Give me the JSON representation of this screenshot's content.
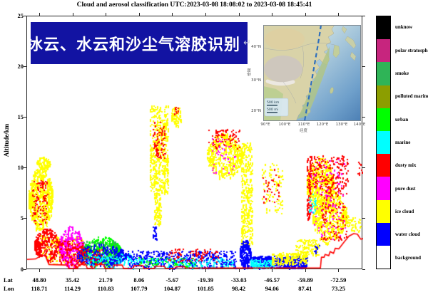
{
  "title": "Cloud and aerosol classification UTC:2023-03-08 18:08:02 to 2023-03-08 18:45:41",
  "banner": {
    "text": "冰云、水云和沙尘气溶胶识别",
    "return_mark": "↵",
    "bg_color": "#1213A2",
    "text_color": "#ffffff"
  },
  "axes": {
    "y_label": "Altitude/km",
    "lat_header": "Lat",
    "lon_header": "Lon"
  },
  "chart_data": {
    "type": "heatmap",
    "title": "Cloud and aerosol classification UTC:2023-03-08 18:08:02 to 2023-03-08 18:45:41",
    "ylabel": "Altitude/km",
    "ylim": [
      0,
      25
    ],
    "y_ticks": [
      "0",
      "5",
      "10",
      "15",
      "20",
      "25"
    ],
    "grid": false,
    "legend_position": "right-colorbar",
    "x_axis": {
      "lat": [
        "48.80",
        "35.42",
        "21.79",
        "8.06",
        "-5.67",
        "-19.39",
        "-33.03",
        "-46.57",
        "-59.89",
        "-72.59"
      ],
      "lon": [
        "118.71",
        "114.29",
        "110.83",
        "107.79",
        "104.87",
        "101.85",
        "98.42",
        "94.06",
        "87.41",
        "73.25"
      ]
    },
    "classes": [
      {
        "key": "unknow",
        "label": "unknow",
        "color": "#000000"
      },
      {
        "key": "polar_strat",
        "label": "polar stratospheric aeroso",
        "color": "#C7257E"
      },
      {
        "key": "smoke",
        "label": "smoke",
        "color": "#2FB457"
      },
      {
        "key": "polluted_marine",
        "label": "polluted marine",
        "color": "#8C9E00"
      },
      {
        "key": "urban",
        "label": "urban",
        "color": "#00FF00"
      },
      {
        "key": "marine",
        "label": "marine",
        "color": "#00FFFF"
      },
      {
        "key": "dusty_mix",
        "label": "dusty mix",
        "color": "#FF0000"
      },
      {
        "key": "pure_dust",
        "label": "pure dust",
        "color": "#FF00FF"
      },
      {
        "key": "ice_cloud",
        "label": "ice cloud",
        "color": "#FFFF00"
      },
      {
        "key": "water_cloud",
        "label": "water cloud",
        "color": "#0000FF"
      },
      {
        "key": "background",
        "label": "background",
        "color": "#FFFFFF"
      }
    ],
    "surface_color": "#FF0000",
    "surface_line": [
      [
        0,
        1.0
      ],
      [
        0.025,
        1.05
      ],
      [
        0.045,
        1.45
      ],
      [
        0.055,
        1.3
      ],
      [
        0.06,
        0.9
      ],
      [
        0.065,
        0.5
      ],
      [
        0.12,
        0.45
      ],
      [
        0.124,
        0.12
      ],
      [
        0.15,
        0.12
      ],
      [
        0.154,
        0.5
      ],
      [
        0.175,
        0.5
      ],
      [
        0.179,
        0.12
      ],
      [
        0.2,
        0.12
      ],
      [
        0.204,
        0.5
      ],
      [
        0.228,
        0.5
      ],
      [
        0.232,
        0.12
      ],
      [
        0.255,
        0.12
      ],
      [
        0.259,
        0.45
      ],
      [
        0.283,
        0.45
      ],
      [
        0.287,
        0.12
      ],
      [
        0.315,
        0.12
      ],
      [
        0.319,
        0.4
      ],
      [
        0.344,
        0.4
      ],
      [
        0.348,
        0.12
      ],
      [
        0.378,
        0.12
      ],
      [
        0.382,
        0.33
      ],
      [
        0.408,
        0.33
      ],
      [
        0.412,
        0.12
      ],
      [
        0.44,
        0.12
      ],
      [
        0.444,
        0.28
      ],
      [
        0.468,
        0.28
      ],
      [
        0.472,
        0.14
      ],
      [
        0.55,
        0.16
      ],
      [
        0.65,
        0.16
      ],
      [
        0.75,
        0.16
      ],
      [
        0.873,
        0.16
      ],
      [
        0.876,
        1.22
      ],
      [
        0.884,
        1.22
      ],
      [
        0.887,
        1.5
      ],
      [
        0.898,
        1.38
      ],
      [
        0.902,
        1.78
      ],
      [
        0.912,
        1.6
      ],
      [
        0.917,
        2.1
      ],
      [
        0.928,
        2.05
      ],
      [
        0.944,
        2.75
      ],
      [
        0.958,
        3.3
      ],
      [
        0.972,
        3.55
      ],
      [
        0.983,
        3.5
      ],
      [
        0.993,
        3.0
      ],
      [
        1,
        3.05
      ]
    ],
    "clusters": [
      {
        "c": "ice_cloud",
        "s": "blob",
        "x": [
          0.005,
          0.078
        ],
        "a": [
          3.8,
          10.3
        ],
        "n": 650
      },
      {
        "c": "dusty_mix",
        "s": "sparse",
        "x": [
          0.015,
          0.065
        ],
        "a": [
          4.5,
          8.8
        ],
        "n": 100
      },
      {
        "c": "ice_cloud",
        "s": "blob",
        "x": [
          0.028,
          0.072
        ],
        "a": [
          9.9,
          11.2
        ],
        "n": 70
      },
      {
        "c": "dusty_mix",
        "s": "blob",
        "x": [
          0.022,
          0.1
        ],
        "a": [
          0.8,
          4.1
        ],
        "n": 360
      },
      {
        "c": "ice_cloud",
        "s": "sparse",
        "x": [
          0.04,
          0.17
        ],
        "a": [
          0.5,
          3.4
        ],
        "n": 160
      },
      {
        "c": "pure_dust",
        "s": "blob",
        "x": [
          0.095,
          0.168
        ],
        "a": [
          0.3,
          4.3
        ],
        "n": 380
      },
      {
        "c": "dusty_mix",
        "s": "sparse",
        "x": [
          0.095,
          0.168
        ],
        "a": [
          0.3,
          3.0
        ],
        "n": 140
      },
      {
        "c": "urban",
        "s": "blob",
        "x": [
          0.163,
          0.285
        ],
        "a": [
          0.2,
          3.3
        ],
        "n": 520
      },
      {
        "c": "smoke",
        "s": "sparse",
        "x": [
          0.168,
          0.27
        ],
        "a": [
          0.4,
          2.9
        ],
        "n": 140
      },
      {
        "c": "water_cloud",
        "s": "blob",
        "x": [
          0.148,
          0.3
        ],
        "a": [
          0.2,
          2.6
        ],
        "n": 300
      },
      {
        "c": "marine",
        "s": "sparse",
        "x": [
          0.18,
          0.33
        ],
        "a": [
          0.08,
          1.6
        ],
        "n": 130
      },
      {
        "c": "dusty_mix",
        "s": "sparse",
        "x": [
          0.13,
          0.23
        ],
        "a": [
          0.4,
          2.2
        ],
        "n": 70
      },
      {
        "c": "water_cloud",
        "s": "band",
        "x": [
          0.3,
          0.625
        ],
        "a": [
          0.05,
          1.9
        ],
        "n": 560
      },
      {
        "c": "marine",
        "s": "sparse",
        "x": [
          0.3,
          0.62
        ],
        "a": [
          0.05,
          1.2
        ],
        "n": 190
      },
      {
        "c": "dusty_mix",
        "s": "sparse",
        "x": [
          0.42,
          0.57
        ],
        "a": [
          0.8,
          2.1
        ],
        "n": 80
      },
      {
        "c": "urban",
        "s": "sparse",
        "x": [
          0.33,
          0.52
        ],
        "a": [
          0.08,
          1.2
        ],
        "n": 70
      },
      {
        "c": "ice_cloud",
        "s": "column",
        "x": [
          0.366,
          0.425
        ],
        "a": [
          7.5,
          16.2
        ],
        "n": 460
      },
      {
        "c": "dusty_mix",
        "s": "sparse",
        "x": [
          0.374,
          0.416
        ],
        "a": [
          11.0,
          14.6
        ],
        "n": 70
      },
      {
        "c": "ice_cloud",
        "s": "column",
        "x": [
          0.378,
          0.402
        ],
        "a": [
          4.5,
          7.6
        ],
        "n": 90
      },
      {
        "c": "ice_cloud",
        "s": "blob",
        "x": [
          0.428,
          0.458
        ],
        "a": [
          14.2,
          16.4
        ],
        "n": 80
      },
      {
        "c": "dusty_mix",
        "s": "sparse",
        "x": [
          0.437,
          0.452
        ],
        "a": [
          15.3,
          16.1
        ],
        "n": 10
      },
      {
        "c": "water_cloud",
        "s": "sparse",
        "x": [
          0.373,
          0.387
        ],
        "a": [
          3.0,
          4.3
        ],
        "n": 28
      },
      {
        "c": "ice_cloud",
        "s": "blob",
        "x": [
          0.535,
          0.642
        ],
        "a": [
          9.0,
          13.6
        ],
        "n": 420
      },
      {
        "c": "dusty_mix",
        "s": "sparse",
        "x": [
          0.54,
          0.635
        ],
        "a": [
          12.0,
          13.9
        ],
        "n": 80
      },
      {
        "c": "pure_dust",
        "s": "sparse",
        "x": [
          0.55,
          0.625
        ],
        "a": [
          9.5,
          13.0
        ],
        "n": 36
      },
      {
        "c": "ice_cloud",
        "s": "column",
        "x": [
          0.638,
          0.676
        ],
        "a": [
          2.5,
          12.6
        ],
        "n": 330
      },
      {
        "c": "water_cloud",
        "s": "blob",
        "x": [
          0.633,
          0.668
        ],
        "a": [
          0.1,
          3.0
        ],
        "n": 180
      },
      {
        "c": "ice_cloud",
        "s": "sparse",
        "x": [
          0.698,
          0.762
        ],
        "a": [
          5.5,
          10.5
        ],
        "n": 90
      },
      {
        "c": "dusty_mix",
        "s": "sparse",
        "x": [
          0.7,
          0.752
        ],
        "a": [
          6.5,
          10.0
        ],
        "n": 30
      },
      {
        "c": "water_cloud",
        "s": "band",
        "x": [
          0.664,
          0.838
        ],
        "a": [
          0.05,
          1.35
        ],
        "n": 650
      },
      {
        "c": "marine",
        "s": "sparse",
        "x": [
          0.664,
          0.74
        ],
        "a": [
          0.05,
          1.0
        ],
        "n": 160
      },
      {
        "c": "ice_cloud",
        "s": "band",
        "x": [
          0.728,
          0.838
        ],
        "a": [
          0.5,
          1.7
        ],
        "n": 220
      },
      {
        "c": "ice_cloud",
        "s": "blob",
        "x": [
          0.833,
          0.915
        ],
        "a": [
          5.5,
          11.3
        ],
        "n": 550
      },
      {
        "c": "ice_cloud",
        "s": "blob",
        "x": [
          0.85,
          0.952
        ],
        "a": [
          2.6,
          8.0
        ],
        "n": 500
      },
      {
        "c": "dusty_mix",
        "s": "sparse",
        "x": [
          0.84,
          0.955
        ],
        "a": [
          8.0,
          11.3
        ],
        "n": 200
      },
      {
        "c": "dusty_mix",
        "s": "sparse",
        "x": [
          0.875,
          0.952
        ],
        "a": [
          3.0,
          8.0
        ],
        "n": 130
      },
      {
        "c": "pure_dust",
        "s": "sparse",
        "x": [
          0.84,
          0.95
        ],
        "a": [
          3.0,
          11.0
        ],
        "n": 90
      },
      {
        "c": "dusty_mix",
        "s": "column",
        "x": [
          0.832,
          0.845
        ],
        "a": [
          5.0,
          11.0
        ],
        "n": 80
      },
      {
        "c": "marine",
        "s": "sparse",
        "x": [
          0.838,
          0.862
        ],
        "a": [
          5.5,
          7.5
        ],
        "n": 22
      },
      {
        "c": "ice_cloud",
        "s": "sparse",
        "x": [
          0.798,
          0.872
        ],
        "a": [
          1.4,
          3.0
        ],
        "n": 130
      },
      {
        "c": "water_cloud",
        "s": "sparse",
        "x": [
          0.853,
          0.872
        ],
        "a": [
          1.7,
          2.4
        ],
        "n": 12
      },
      {
        "c": "ice_cloud",
        "s": "sparse",
        "x": [
          0.952,
          0.995
        ],
        "a": [
          3.8,
          5.4
        ],
        "n": 55
      },
      {
        "c": "dusty_mix",
        "s": "sparse",
        "x": [
          0.982,
          1.0
        ],
        "a": [
          9.4,
          10.7
        ],
        "n": 10
      }
    ]
  },
  "inset_map": {
    "x_ticks": [
      "90°E",
      "100°E",
      "110°E",
      "120°E",
      "130°E",
      "140°E"
    ],
    "y_ticks": [
      "40°N",
      "30°N",
      "20°N"
    ],
    "x_axis_label": "经度",
    "y_axis_label": "纬度",
    "scale_labels": [
      "500 km",
      "500 mi"
    ],
    "track_color": "#2E6FBD"
  }
}
